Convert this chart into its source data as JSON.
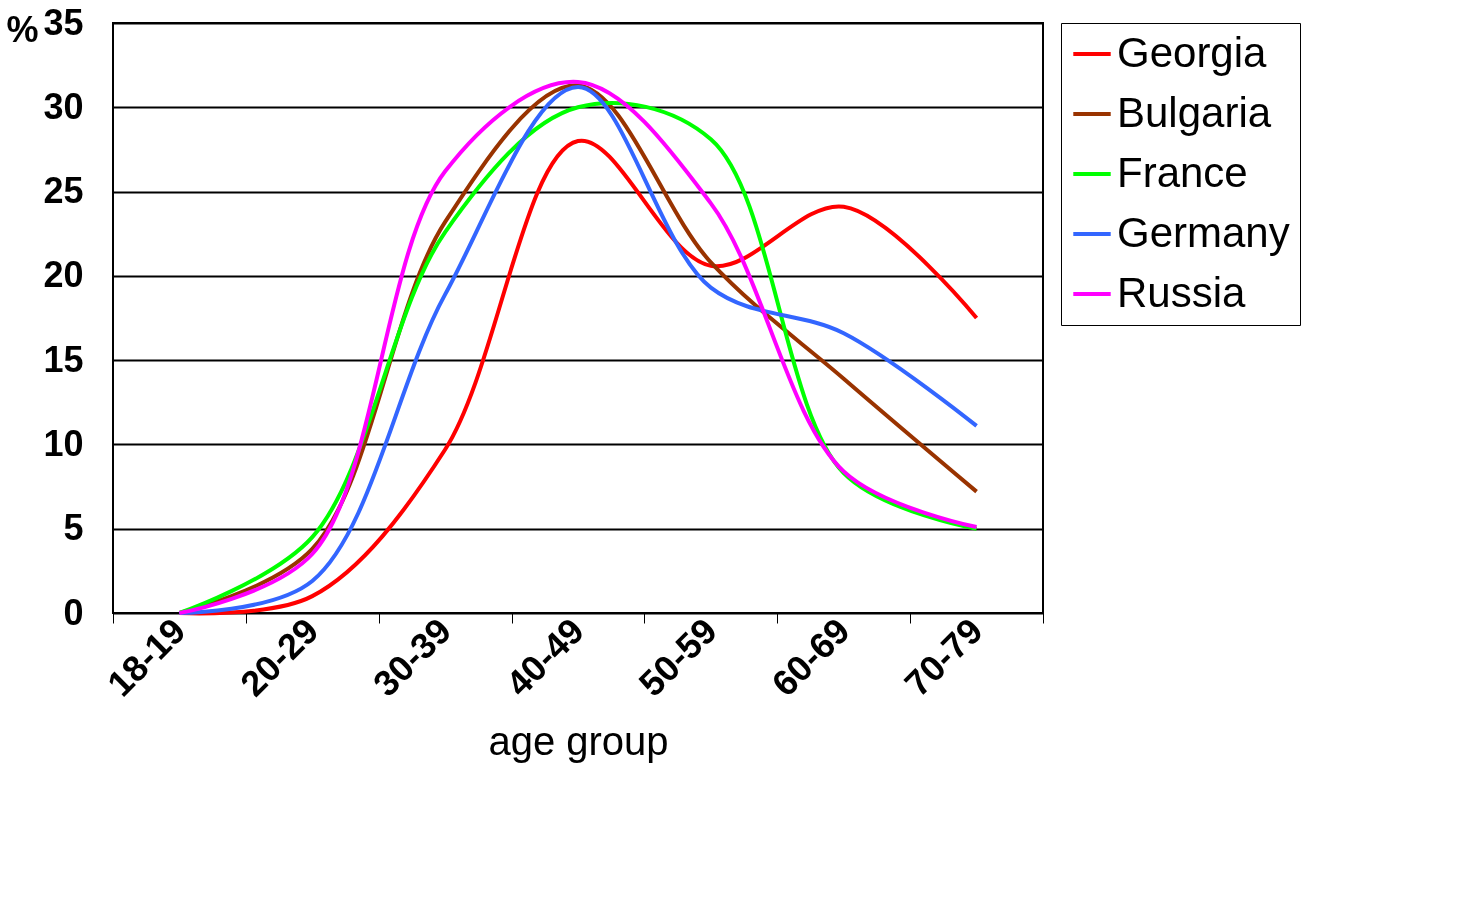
{
  "chart_data": {
    "type": "line",
    "xlabel": "age group",
    "ylabel": "%",
    "categories": [
      "18-19",
      "20-29",
      "30-39",
      "40-49",
      "50-59",
      "60-69",
      "70-79"
    ],
    "series": [
      {
        "name": "Georgia",
        "color": "#ff0000",
        "values": [
          0,
          1.0,
          9.7,
          28,
          20.6,
          24.1,
          17.5
        ]
      },
      {
        "name": "Bulgaria",
        "color": "#993300",
        "values": [
          0,
          3.8,
          23.2,
          31.3,
          20.8,
          13.9,
          7.2
        ]
      },
      {
        "name": "France",
        "color": "#00ff00",
        "values": [
          0,
          4.5,
          22.6,
          30.0,
          28.1,
          8.3,
          5.0
        ]
      },
      {
        "name": "Germany",
        "color": "#3366ff",
        "values": [
          0,
          1.9,
          18.9,
          31.2,
          19.3,
          16.6,
          11.1
        ]
      },
      {
        "name": "Russia",
        "color": "#ff00ff",
        "values": [
          0,
          3.5,
          26.2,
          31.5,
          24.3,
          8.4,
          5.1
        ]
      }
    ],
    "ylim": [
      0,
      35
    ],
    "yticks": [
      0,
      5,
      10,
      15,
      20,
      25,
      30,
      35
    ],
    "grid": "y",
    "legend": "right",
    "marker": "none",
    "line_style": "solid"
  }
}
